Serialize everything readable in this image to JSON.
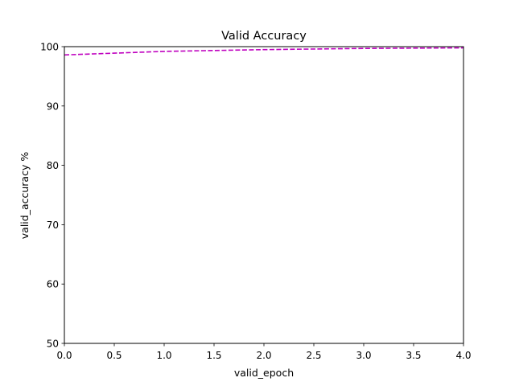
{
  "chart_data": {
    "type": "line",
    "title": "Valid Accuracy",
    "xlabel": "valid_epoch",
    "ylabel": "valid_accuracy %",
    "xlim": [
      0,
      4
    ],
    "ylim": [
      50,
      100
    ],
    "x_ticks": [
      "0.0",
      "0.5",
      "1.0",
      "1.5",
      "2.0",
      "2.5",
      "3.0",
      "3.5",
      "4.0"
    ],
    "y_ticks": [
      "50",
      "60",
      "70",
      "80",
      "90",
      "100"
    ],
    "grid": false,
    "series": [
      {
        "x": [
          0,
          1,
          2,
          3,
          4
        ],
        "values": [
          98.6,
          99.2,
          99.5,
          99.7,
          99.8
        ],
        "color": "#bf00bf",
        "line_style": "dashed"
      }
    ]
  }
}
